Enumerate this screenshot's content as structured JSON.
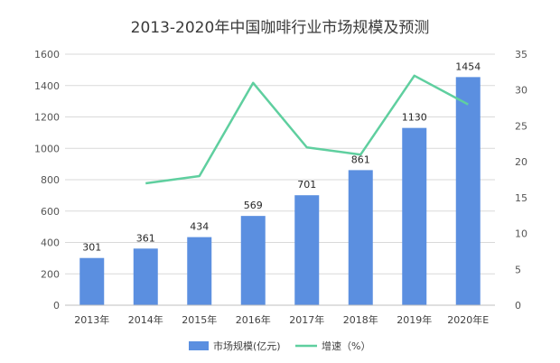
{
  "chart_data": {
    "type": "bar",
    "title": "2013-2020年中国咖啡行业市场规模及预测",
    "categories": [
      "2013年",
      "2014年",
      "2015年",
      "2016年",
      "2017年",
      "2018年",
      "2019年",
      "2020年E"
    ],
    "series": [
      {
        "name": "市场规模(亿元)",
        "type": "bar",
        "axis": "left",
        "values": [
          301,
          361,
          434,
          569,
          701,
          861,
          1130,
          1454
        ],
        "data_labels": [
          "301",
          "361",
          "434",
          "569",
          "701",
          "861",
          "1130",
          "1454"
        ]
      },
      {
        "name": "增速（%）",
        "type": "line",
        "axis": "right",
        "values": [
          null,
          17,
          18,
          31,
          22,
          21,
          32,
          28
        ]
      }
    ],
    "y_left": {
      "ylim": [
        0,
        1600
      ],
      "ticks": [
        "0",
        "200",
        "400",
        "600",
        "800",
        "1000",
        "1200",
        "1400",
        "1600"
      ]
    },
    "y_right": {
      "ylim": [
        0,
        35
      ],
      "ticks": [
        "0",
        "5",
        "10",
        "15",
        "20",
        "25",
        "30",
        "35"
      ]
    },
    "grid": true,
    "legend_position": "bottom",
    "colors": {
      "bar": "#5b8fe0",
      "line": "#5fcf9f",
      "grid": "#d9d9d9",
      "axis": "#bfbfbf"
    }
  }
}
